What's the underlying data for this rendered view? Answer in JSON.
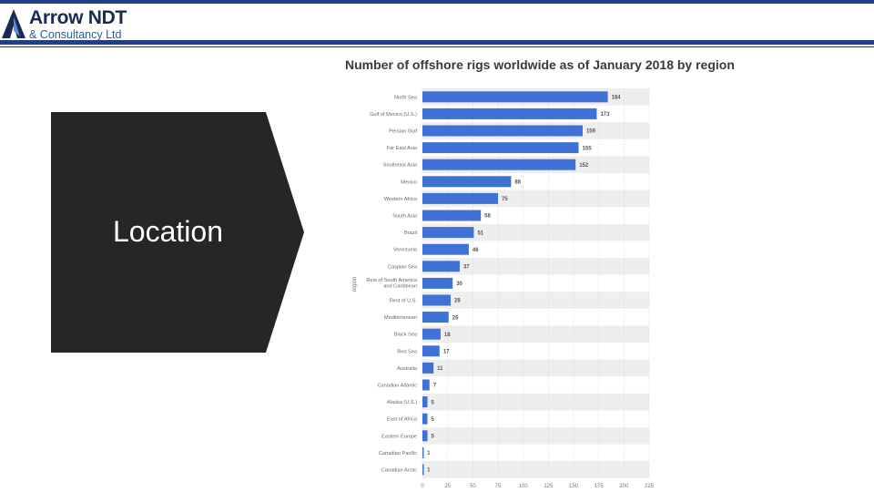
{
  "header": {
    "logo_title": "Arrow NDT",
    "logo_subtitle": "& Consultancy Ltd",
    "colors": {
      "navy": "#1f3f86",
      "logo_text": "#1b2a52",
      "logo_sub": "#2a5aa8"
    }
  },
  "slide": {
    "location_label": "Location",
    "shape_color": "#262626"
  },
  "chart_data": {
    "type": "bar",
    "orientation": "horizontal",
    "title": "Number of offshore rigs worldwide as of January 2018 by region",
    "xlabel": "",
    "ylabel": "region",
    "categories": [
      "North Sea",
      "Gulf of Mexico (U.S.)",
      "Persian Gulf",
      "Far East Asia",
      "Southeast Asia",
      "Mexico",
      "Western Africa",
      "South Asia",
      "Brazil",
      "Venezuela",
      "Caspian Sea",
      "Rest of South America and Caribbean",
      "Rest of U.S.",
      "Mediterranean",
      "Black Sea",
      "Red Sea",
      "Australia",
      "Canadian Atlantic",
      "Alaska (U.S.)",
      "East of Africa",
      "Eastern Europe",
      "Canadian Pacific",
      "Canadian Arctic"
    ],
    "values": [
      184,
      173,
      159,
      155,
      152,
      88,
      75,
      58,
      51,
      46,
      37,
      30,
      28,
      26,
      18,
      17,
      11,
      7,
      5,
      5,
      5,
      1,
      1
    ],
    "xlim": [
      0,
      225
    ],
    "xticks": [
      0,
      25,
      50,
      75,
      100,
      125,
      150,
      175,
      200,
      225
    ],
    "bar_color": "#3f72d4",
    "stripe_color": "#eeeeee"
  }
}
